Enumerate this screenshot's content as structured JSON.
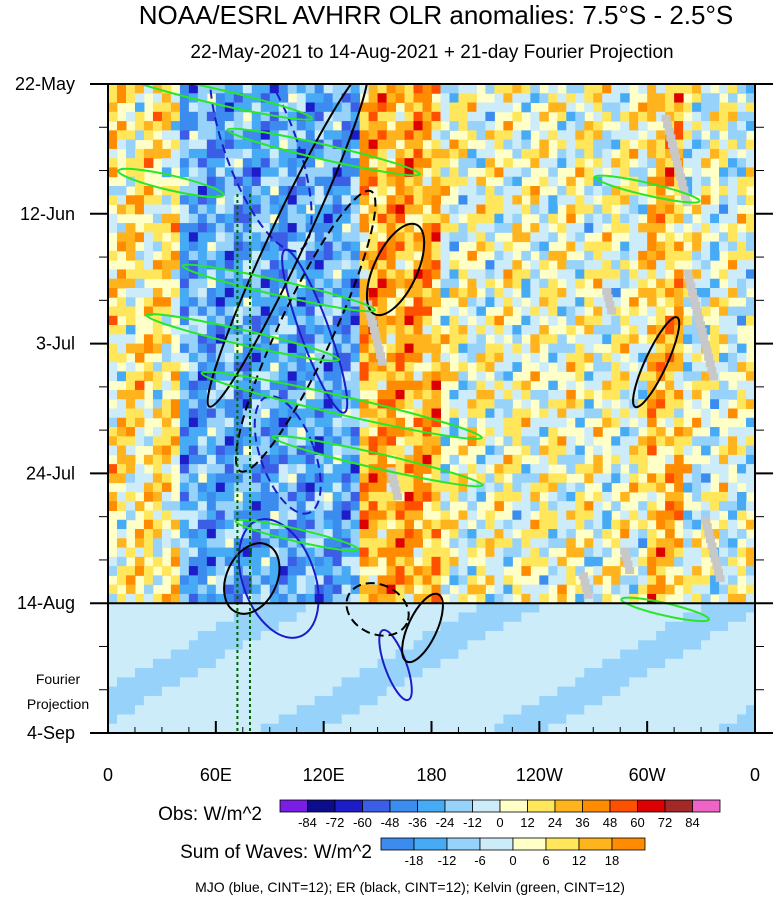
{
  "chart_data": {
    "type": "heatmap",
    "title": "NOAA/ESRL AVHRR OLR anomalies: 7.5°S - 2.5°S",
    "subtitle": "22-May-2021 to 14-Aug-2021 + 21-day Fourier Projection",
    "x_ticks": [
      "0",
      "60E",
      "120E",
      "180",
      "120W",
      "60W",
      "0"
    ],
    "x_tick_values": [
      0,
      60,
      120,
      180,
      240,
      300,
      360
    ],
    "xlim": [
      0,
      360
    ],
    "y_ticks": [
      "22-May",
      "12-Jun",
      "3-Jul",
      "24-Jul",
      "14-Aug",
      "4-Sep"
    ],
    "y_tick_days": [
      0,
      21,
      42,
      63,
      84,
      105
    ],
    "ylim_days": [
      0,
      105
    ],
    "observation_end_day": 84,
    "projection_label": [
      "Fourier",
      "Projection"
    ],
    "obs_colorbar": {
      "label": "Obs: W/m^2",
      "levels": [
        "-84",
        "-72",
        "-60",
        "-48",
        "-36",
        "-24",
        "-12",
        "0",
        "12",
        "24",
        "36",
        "48",
        "60",
        "72",
        "84"
      ],
      "colors": [
        "#7a1ee6",
        "#0c0c8c",
        "#1c1cc8",
        "#3c5ee6",
        "#3c8cf0",
        "#46aaf5",
        "#96d2fa",
        "#cdecfa",
        "#ffffc8",
        "#ffe65a",
        "#ffb41e",
        "#ff8c00",
        "#ff5000",
        "#dc0000",
        "#a52828",
        "#f064c8"
      ]
    },
    "waves_colorbar": {
      "label": "Sum of Waves: W/m^2",
      "levels": [
        "-18",
        "-12",
        "-6",
        "0",
        "6",
        "12",
        "18"
      ],
      "colors": [
        "#3c8cf0",
        "#46aaf5",
        "#96d2fa",
        "#cdecfa",
        "#ffffc8",
        "#ffe65a",
        "#ffb41e",
        "#ff8c00"
      ]
    },
    "footnote": "MJO (blue, CINT=12); ER (black, CINT=12); Kelvin (green, CINT=12)",
    "reference_lines_lon": [
      72,
      79
    ],
    "bands": [
      {
        "lon0": 40,
        "lon1": 140,
        "anom": -30,
        "days": [
          0,
          84
        ]
      },
      {
        "lon0": 140,
        "lon1": 185,
        "anom": 30,
        "days": [
          0,
          84
        ]
      },
      {
        "lon0": 185,
        "lon1": 300,
        "anom": 3,
        "days": [
          0,
          84
        ]
      },
      {
        "lon0": 300,
        "lon1": 320,
        "anom": 25,
        "days": [
          0,
          84
        ]
      },
      {
        "lon0": 0,
        "lon1": 40,
        "anom": 12,
        "days": [
          0,
          84
        ]
      },
      {
        "lon0": 0,
        "lon1": 360,
        "anom": -8,
        "days": [
          84,
          105
        ]
      }
    ],
    "mjo_contours": [
      {
        "lon": 115,
        "day": 40,
        "rlon": 8,
        "rday": 14,
        "dashed": false
      },
      {
        "lon": 95,
        "day": 80,
        "rlon": 20,
        "rday": 10,
        "dashed": false
      },
      {
        "lon": 160,
        "day": 94,
        "rlon": 6,
        "rday": 6,
        "dashed": false
      },
      {
        "lon": 85,
        "day": 10,
        "rlon": 20,
        "rday": 18,
        "dashed": true
      },
      {
        "lon": 100,
        "day": 60,
        "rlon": 15,
        "rday": 10,
        "dashed": true
      }
    ],
    "er_contours": [
      {
        "lon": 100,
        "day": 25,
        "rlon": 10,
        "rday": 30,
        "dashed": false
      },
      {
        "lon": 160,
        "day": 30,
        "rlon": 12,
        "rday": 8,
        "dashed": false
      },
      {
        "lon": 305,
        "day": 45,
        "rlon": 6,
        "rday": 8,
        "dashed": false
      },
      {
        "lon": 80,
        "day": 80,
        "rlon": 14,
        "rday": 6,
        "dashed": false
      },
      {
        "lon": 175,
        "day": 88,
        "rlon": 8,
        "rday": 6,
        "dashed": false
      },
      {
        "lon": 110,
        "day": 40,
        "rlon": 15,
        "rday": 25,
        "dashed": true
      },
      {
        "lon": 150,
        "day": 85,
        "rlon": 18,
        "rday": 4,
        "dashed": true
      }
    ],
    "kelvin_contours": [
      {
        "lon": 60,
        "day": 2,
        "rlon": 55,
        "rday": 1.2
      },
      {
        "lon": 120,
        "day": 11,
        "rlon": 55,
        "rday": 1.2
      },
      {
        "lon": 35,
        "day": 16,
        "rlon": 30,
        "rday": 1.2
      },
      {
        "lon": 95,
        "day": 33,
        "rlon": 55,
        "rday": 1.2
      },
      {
        "lon": 75,
        "day": 41,
        "rlon": 55,
        "rday": 1.2
      },
      {
        "lon": 130,
        "day": 52,
        "rlon": 80,
        "rday": 1.5
      },
      {
        "lon": 150,
        "day": 61,
        "rlon": 60,
        "rday": 1.2
      },
      {
        "lon": 105,
        "day": 73,
        "rlon": 35,
        "rday": 1.0
      },
      {
        "lon": 300,
        "day": 17,
        "rlon": 30,
        "rday": 1.0
      },
      {
        "lon": 310,
        "day": 85,
        "rlon": 25,
        "rday": 1.0
      }
    ],
    "missing_data_marks": [
      {
        "lon": 142,
        "day": 35,
        "len": 30
      },
      {
        "lon": 155,
        "day": 62,
        "len": 15
      },
      {
        "lon": 275,
        "day": 33,
        "len": 10
      },
      {
        "lon": 285,
        "day": 75,
        "len": 10
      },
      {
        "lon": 262,
        "day": 79,
        "len": 10
      },
      {
        "lon": 308,
        "day": 5,
        "len": 40
      },
      {
        "lon": 320,
        "day": 30,
        "len": 50
      },
      {
        "lon": 330,
        "day": 70,
        "len": 30
      }
    ]
  }
}
